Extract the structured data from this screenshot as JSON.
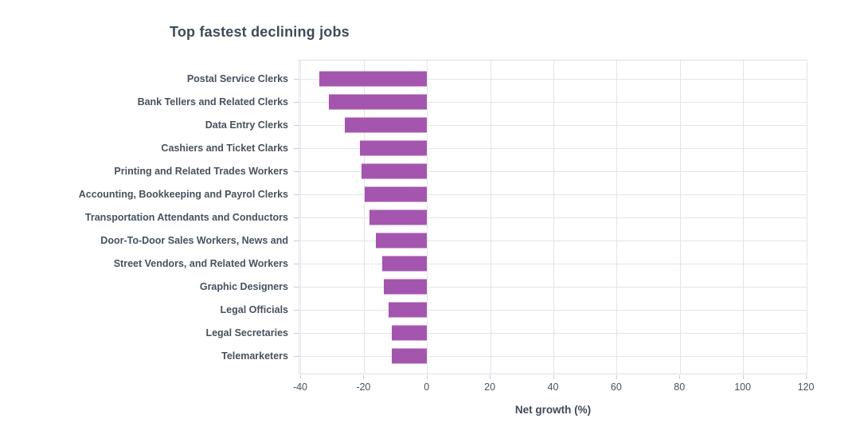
{
  "chart_data": {
    "type": "bar",
    "orientation": "horizontal",
    "title": "Top fastest declining jobs",
    "xlabel": "Net growth (%)",
    "categories": [
      "Postal Service Clerks",
      "Bank Tellers and Related Clerks",
      "Data Entry Clerks",
      "Cashiers and Ticket Clarks",
      "Printing and Related Trades Workers",
      "Accounting, Bookkeeping and Payrol Clerks",
      "Transportation Attendants and Conductors",
      "Door-To-Door Sales Workers, News and",
      "Street Vendors, and Related Workers",
      "Graphic Designers",
      "Legal Officials",
      "Legal Secretaries",
      "Telemarketers"
    ],
    "values": [
      -34,
      -31,
      -26,
      -21,
      -20.5,
      -19.5,
      -18,
      -16,
      -14,
      -13.5,
      -12,
      -11,
      -11
    ],
    "x_ticks": [
      -40,
      -20,
      0,
      20,
      40,
      60,
      80,
      100,
      120
    ],
    "xlim": [
      -40.5,
      120.5
    ],
    "grid": true,
    "legend_position": "none",
    "colors": {
      "bar": "#a456ae",
      "gridline": "#e0e4ea",
      "axis_border": "#dce0e7",
      "tick": "#c7cdd5",
      "title_text": "#3f4b57",
      "label_text": "#46525e"
    }
  }
}
